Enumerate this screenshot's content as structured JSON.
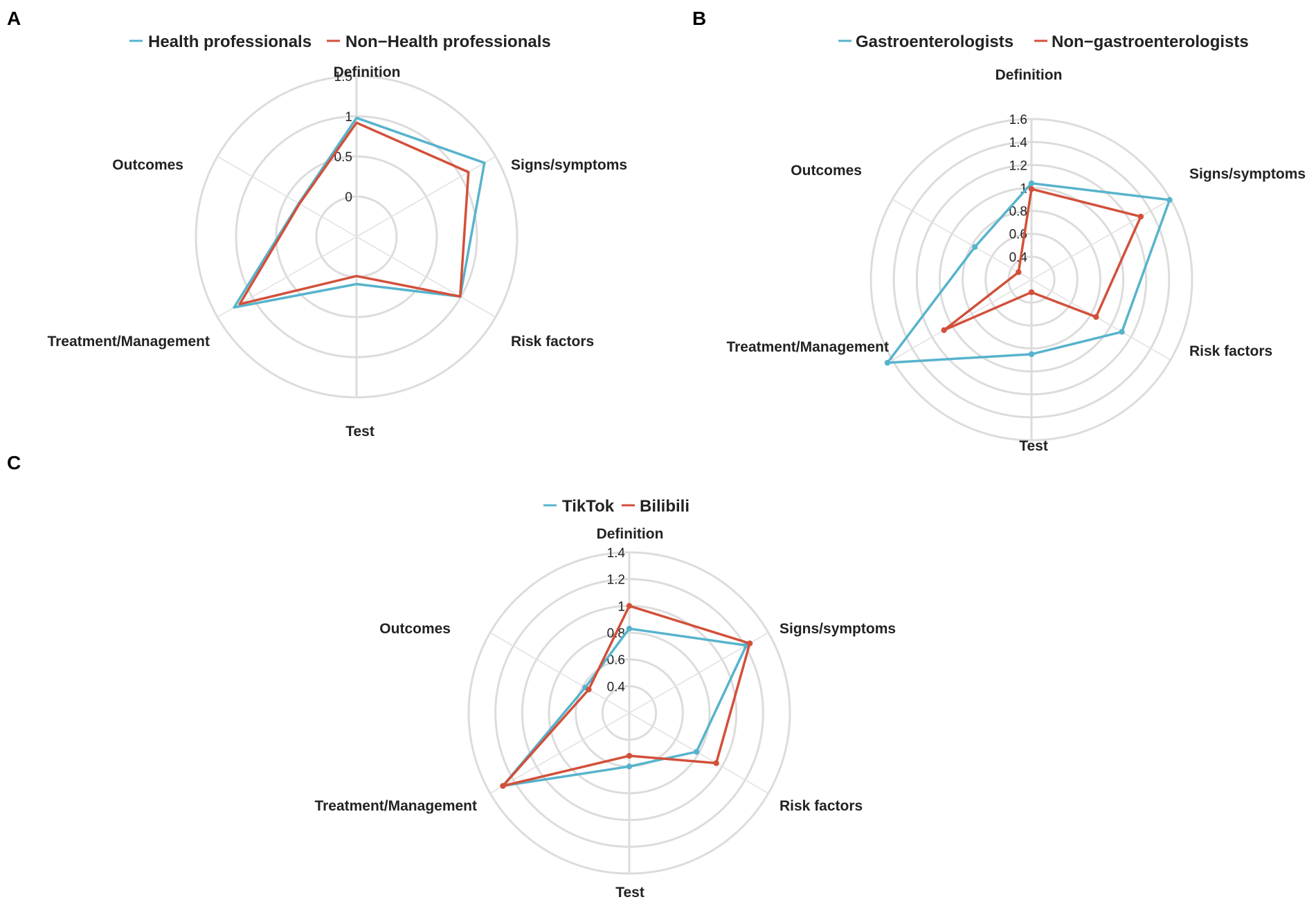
{
  "colors": {
    "series1": "#57b3cc",
    "series2": "#d2503a",
    "grid": "#dcdcdc"
  },
  "chart_data": [
    {
      "type": "radar",
      "panel": "A",
      "axes": [
        "Definition",
        "Signs/symptoms",
        "Risk factors",
        "Test",
        "Treatment/Management",
        "Outcomes"
      ],
      "ticks": [
        "0",
        "0.5",
        "1",
        "1.5"
      ],
      "rmin": -0.5,
      "rmax": 1.5,
      "series": [
        {
          "name": "Health professionals",
          "values": [
            0.98,
            1.34,
            0.99,
            0.09,
            1.26,
            0.33
          ]
        },
        {
          "name": "Non−Health professionals",
          "values": [
            0.92,
            1.11,
            0.99,
            -0.01,
            1.18,
            0.32
          ]
        }
      ]
    },
    {
      "type": "radar",
      "panel": "B",
      "axes": [
        "Definition",
        "Signs/symptoms",
        "Risk factors",
        "Test",
        "Treatment/Management",
        "Outcomes"
      ],
      "ticks": [
        "0.4",
        "0.6",
        "0.8",
        "1",
        "1.2",
        "1.4",
        "1.6"
      ],
      "rmin": 0.2,
      "rmax": 1.6,
      "series": [
        {
          "name": "Gastroenterologists",
          "values": [
            1.04,
            1.59,
            1.11,
            0.85,
            1.65,
            0.77
          ]
        },
        {
          "name": "Non−gastroenterologists",
          "values": [
            0.99,
            1.3,
            0.85,
            0.31,
            1.08,
            0.33
          ]
        }
      ]
    },
    {
      "type": "radar",
      "panel": "C",
      "axes": [
        "Definition",
        "Signs/symptoms",
        "Risk factors",
        "Test",
        "Treatment/Management",
        "Outcomes"
      ],
      "ticks": [
        "0.4",
        "0.6",
        "0.8",
        "1",
        "1.2",
        "1.4"
      ],
      "rmin": 0.2,
      "rmax": 1.4,
      "series": [
        {
          "name": "TikTok",
          "values": [
            0.83,
            1.21,
            0.78,
            0.6,
            1.29,
            0.58
          ]
        },
        {
          "name": "Bilibili",
          "values": [
            1.0,
            1.24,
            0.95,
            0.52,
            1.29,
            0.55
          ]
        }
      ]
    }
  ]
}
